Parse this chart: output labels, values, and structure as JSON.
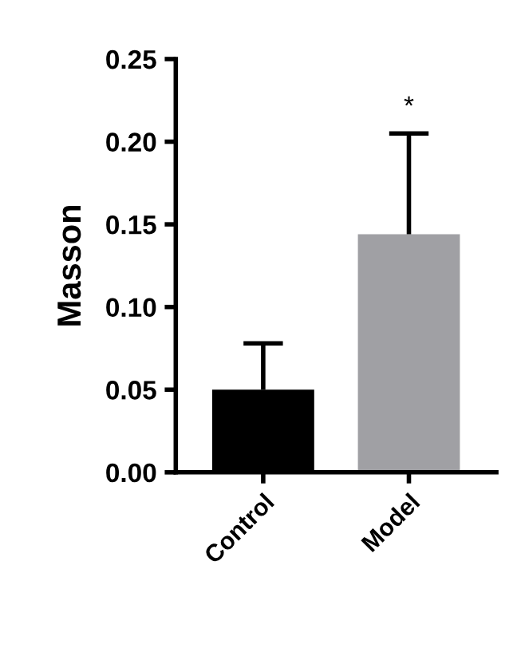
{
  "chart_data": {
    "type": "bar",
    "ylabel": "Masson",
    "categories": [
      "Control",
      "Model"
    ],
    "values": [
      0.05,
      0.144
    ],
    "colors": [
      "#000000",
      "#a0a0a4"
    ],
    "errors": [
      [
        0.05,
        0.078
      ],
      [
        0.144,
        0.205
      ]
    ],
    "ylim": [
      0,
      0.25
    ],
    "yticks": [
      {
        "value": 0,
        "label": "0.00"
      },
      {
        "value": 0.05,
        "label": "0.05"
      },
      {
        "value": 0.1,
        "label": "0.10"
      },
      {
        "value": 0.15,
        "label": "0.15"
      },
      {
        "value": 0.2,
        "label": "0.20"
      },
      {
        "value": 0.25,
        "label": "0.25"
      }
    ],
    "annotations": [
      {
        "text": "*",
        "x": "Model",
        "y": 0.205
      }
    ],
    "grid": false,
    "legend": false
  }
}
